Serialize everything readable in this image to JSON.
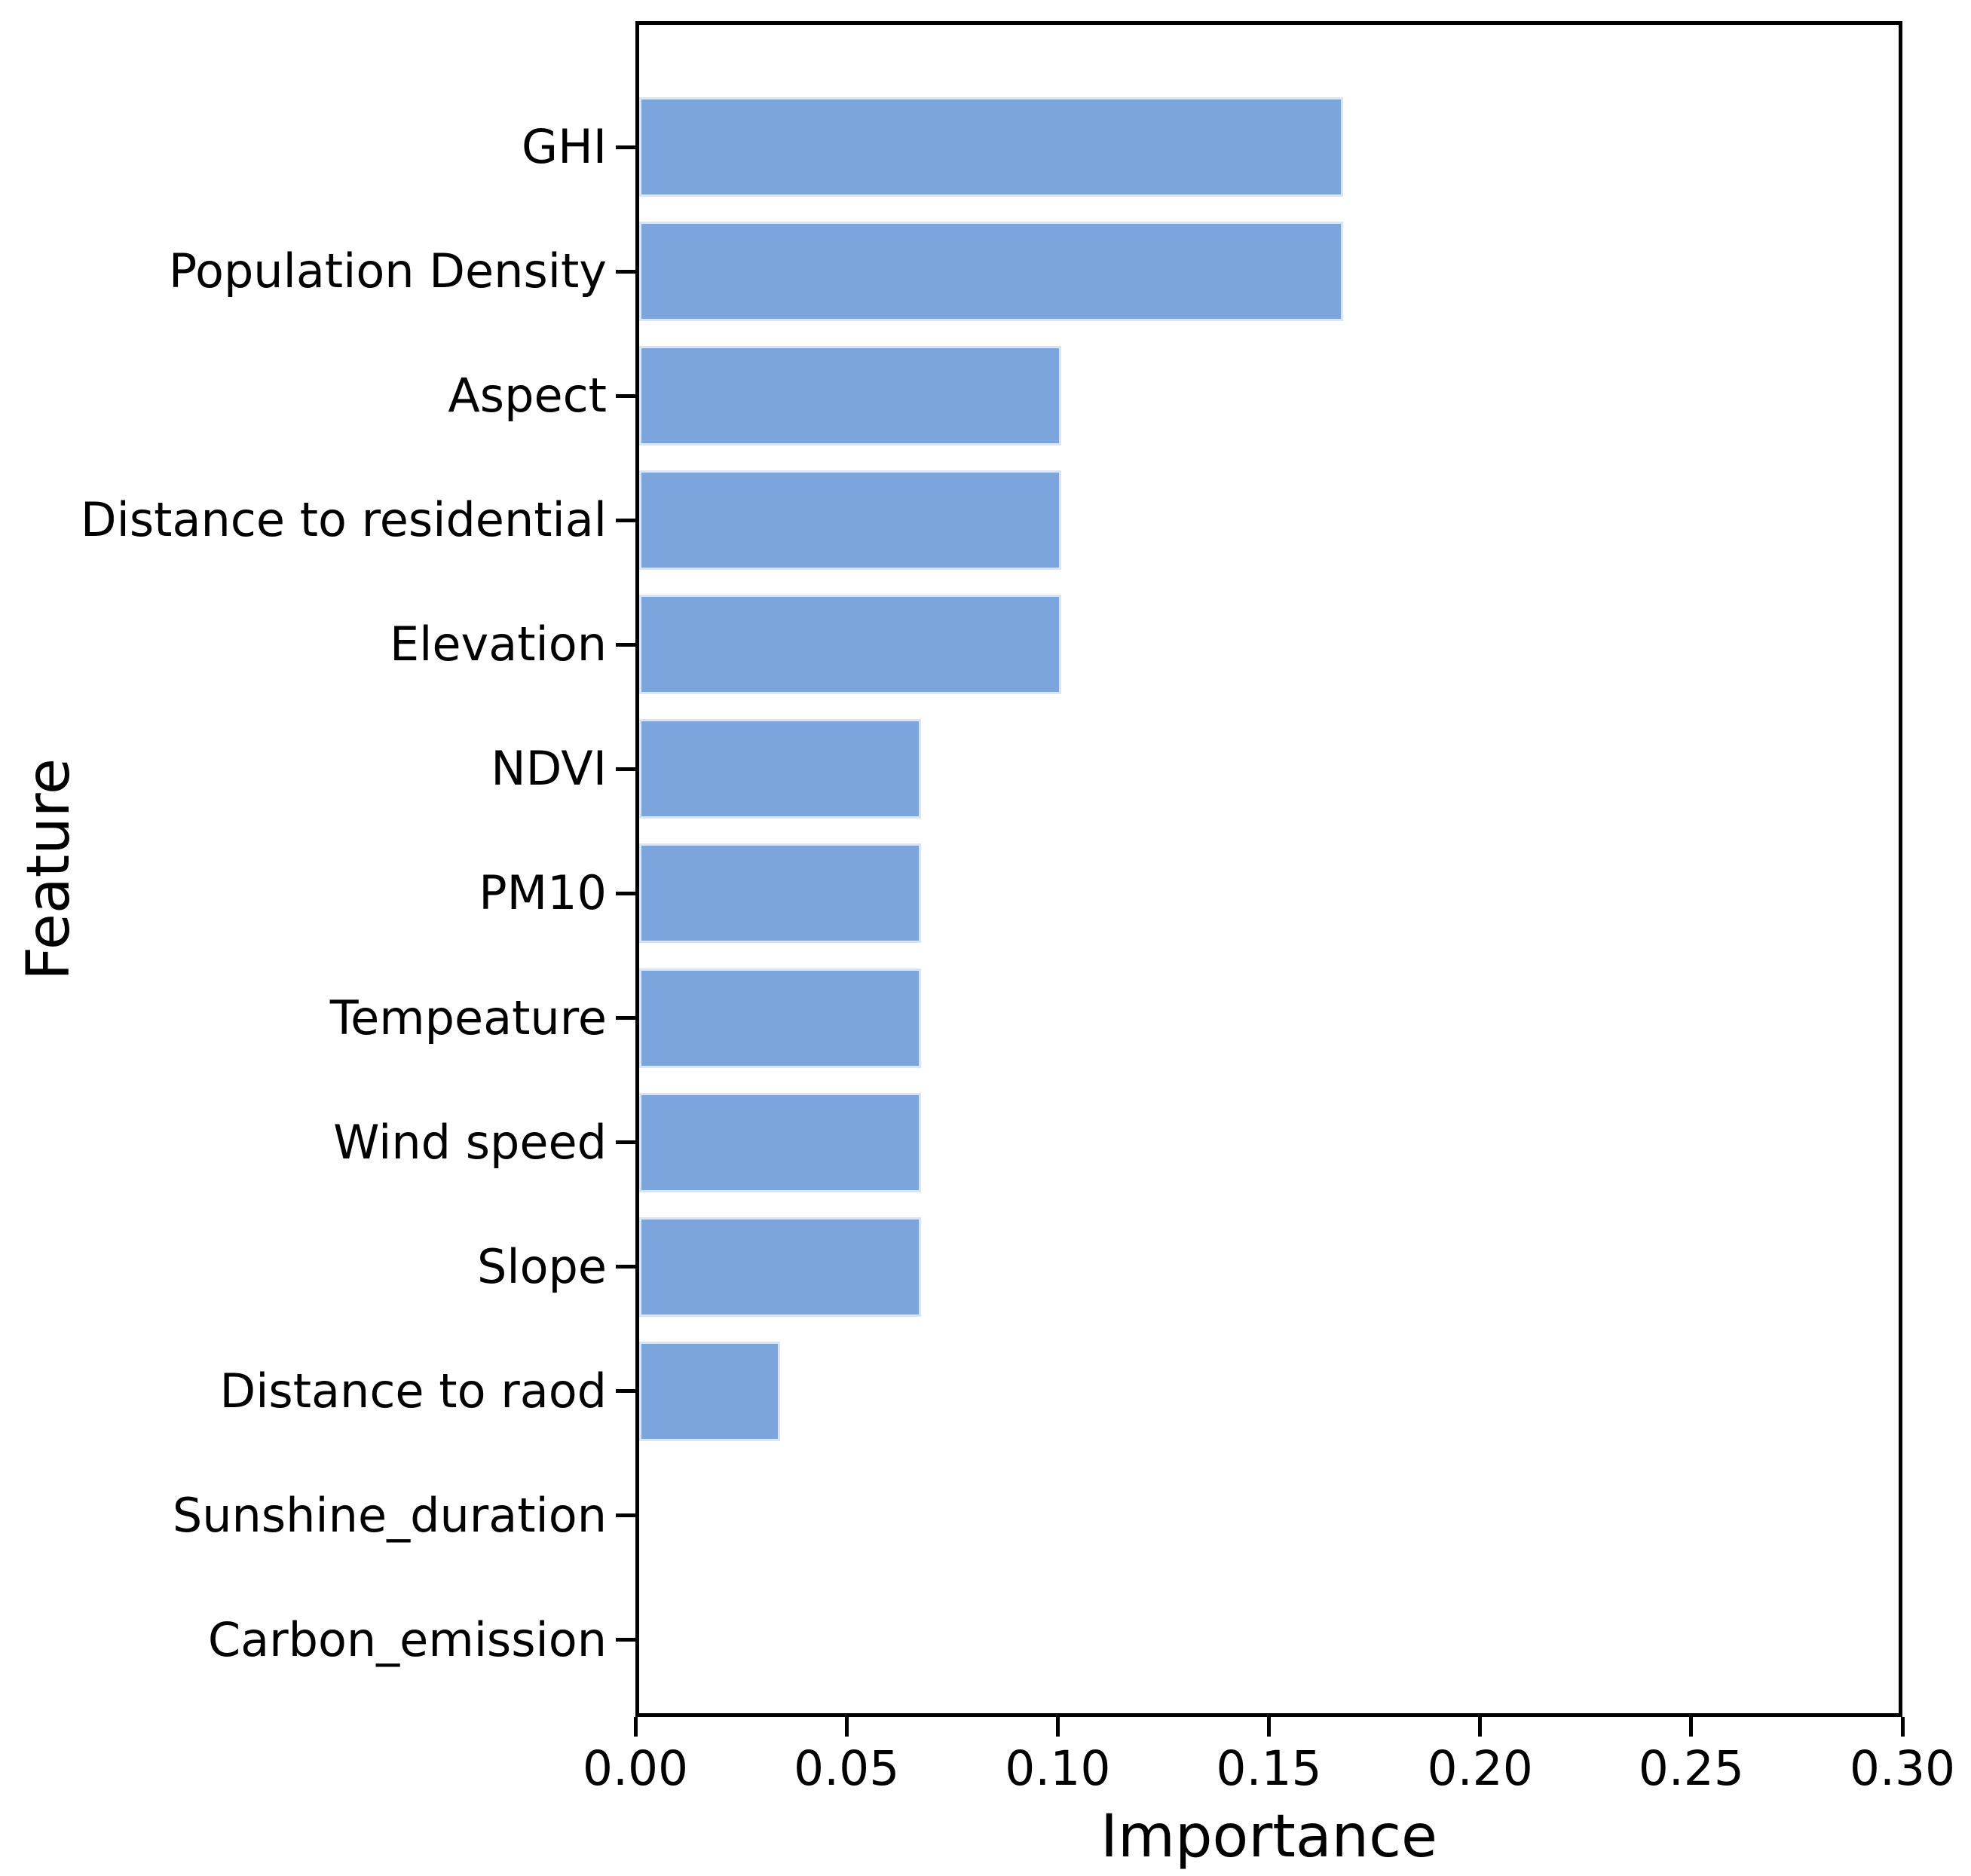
{
  "chart_data": {
    "type": "bar",
    "orientation": "horizontal",
    "title": "",
    "xlabel": "Importance",
    "ylabel": "Feature",
    "categories": [
      "GHI",
      "Population Density",
      "Aspect",
      "Distance to residential",
      "Elevation",
      "NDVI",
      "PM10",
      "Tempeature",
      "Wind speed",
      "Slope",
      "Distance to raod",
      "Sunshine_duration",
      "Carbon_emission"
    ],
    "values": [
      0.1667,
      0.1667,
      0.1,
      0.1,
      0.1,
      0.0667,
      0.0667,
      0.0667,
      0.0667,
      0.0667,
      0.0333,
      0.0,
      0.0
    ],
    "xlim": [
      0.0,
      0.3
    ],
    "x_ticks": [
      "0.00",
      "0.05",
      "0.10",
      "0.15",
      "0.20",
      "0.25",
      "0.30"
    ],
    "x_tick_values": [
      0.0,
      0.05,
      0.1,
      0.15,
      0.2,
      0.25,
      0.3
    ],
    "grid": false,
    "legend": null,
    "bar_color": "#7ca5de",
    "bar_edge_color": "#d8e5f5",
    "axis_color": "#000000",
    "text_color": "#000000",
    "background_color": "#ffffff"
  }
}
